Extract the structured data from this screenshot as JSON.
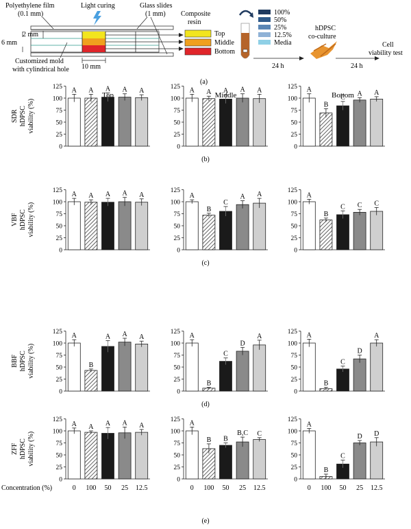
{
  "schematic": {
    "labels": {
      "film": "Polyethylene film",
      "film_dim": "(0.1 mm)",
      "curing": "Light curing",
      "glass": "Glass slides",
      "glass_dim": "(1 mm)",
      "resin": "Composite",
      "resin2": "resin",
      "top": "Top",
      "middle": "Middle",
      "bottom": "Bottom",
      "dim_2mm": "2 mm",
      "dim_6mm": "6 mm",
      "dim_10mm": "10 mm",
      "mold": "Customized mold",
      "mold2": "with cylindrical hole",
      "time1": "24 h",
      "time2": "24 h",
      "coculture": "hDPSC",
      "coculture2": "co-culture",
      "test": "Cell",
      "test2": "viability test",
      "caption": "(a)"
    },
    "dilutions": [
      {
        "label": "100%",
        "color": "#1f3a5f"
      },
      {
        "label": "50%",
        "color": "#2f5a8a"
      },
      {
        "label": "25%",
        "color": "#5a86b5"
      },
      {
        "label": "12.5%",
        "color": "#8fb2d6"
      },
      {
        "label": "Media",
        "color": "#8fd0e6"
      }
    ],
    "colors": {
      "top": "#f2e51f",
      "middle": "#f0a01e",
      "bottom": "#e0252a",
      "vial": "#b5642a",
      "cells": "#e8942f"
    }
  },
  "chart_data": {
    "type": "bar",
    "column_titles": [
      "Top",
      "Middle",
      "Bottom"
    ],
    "categories": [
      "0",
      "100",
      "50",
      "25",
      "12.5"
    ],
    "xlabel": "Concentration (%)",
    "ylim": [
      0,
      125
    ],
    "yticks": [
      "0",
      "25",
      "50",
      "75",
      "100",
      "125"
    ],
    "bar_styles": [
      "white",
      "hatched",
      "black",
      "gray",
      "lightgray"
    ],
    "bar_colors": {
      "white": "#ffffff",
      "black": "#1a1a1a",
      "gray": "#8a8a8a",
      "lightgray": "#cfcfcf"
    },
    "rows": [
      {
        "material": "SDR",
        "ylabel": "hDPSC",
        "ylabel2": "viability (%)",
        "caption": "(b)",
        "panels": [
          {
            "values": [
              100,
              100,
              102,
              102,
              101
            ],
            "errors": [
              8,
              8,
              9,
              7,
              6
            ],
            "letters": [
              "A",
              "A",
              "A",
              "A",
              "A"
            ]
          },
          {
            "values": [
              100,
              99,
              98,
              100,
              99
            ],
            "errors": [
              8,
              5,
              9,
              9,
              9
            ],
            "letters": [
              "A",
              "A",
              "A",
              "A",
              "A"
            ]
          },
          {
            "values": [
              100,
              69,
              84,
              96,
              98
            ],
            "errors": [
              9,
              9,
              9,
              5,
              5
            ],
            "letters": [
              "A",
              "B",
              "C",
              "A",
              "A"
            ]
          }
        ]
      },
      {
        "material": "VBF",
        "ylabel": "hDPSC",
        "ylabel2": "viability (%)",
        "caption": "(c)",
        "panels": [
          {
            "values": [
              100,
              99,
              99,
              100,
              99
            ],
            "errors": [
              7,
              5,
              8,
              9,
              7
            ],
            "letters": [
              "A",
              "A",
              "A",
              "A",
              "A"
            ]
          },
          {
            "values": [
              100,
              72,
              80,
              94,
              97
            ],
            "errors": [
              4,
              4,
              10,
              8,
              10
            ],
            "letters": [
              "A",
              "B",
              "C",
              "A",
              "A"
            ]
          },
          {
            "values": [
              100,
              62,
              73,
              78,
              80
            ],
            "errors": [
              5,
              4,
              8,
              6,
              8
            ],
            "letters": [
              "A",
              "B",
              "C",
              "C",
              "C"
            ]
          }
        ]
      },
      {
        "material": "BBF",
        "ylabel": "hDPSC",
        "ylabel2": "viability (%)",
        "caption": "(d)",
        "panels": [
          {
            "values": [
              100,
              43,
              93,
              102,
              98
            ],
            "errors": [
              7,
              3,
              12,
              8,
              6
            ],
            "letters": [
              "A",
              "B",
              "A",
              "A",
              "A"
            ]
          },
          {
            "values": [
              100,
              6,
              62,
              83,
              96
            ],
            "errors": [
              7,
              2,
              7,
              8,
              10
            ],
            "letters": [
              "A",
              "B",
              "C",
              "D",
              "A"
            ]
          },
          {
            "values": [
              100,
              5,
              46,
              67,
              100
            ],
            "errors": [
              8,
              3,
              6,
              8,
              7
            ],
            "letters": [
              "A",
              "B",
              "C",
              "D",
              "A"
            ]
          }
        ]
      },
      {
        "material": "ZFF",
        "ylabel": "hDPSC",
        "ylabel2": "viability (%)",
        "caption": "(e)",
        "panels": [
          {
            "values": [
              100,
              97,
              95,
              96,
              97
            ],
            "errors": [
              6,
              3,
              12,
              12,
              6
            ],
            "letters": [
              "A",
              "A",
              "A",
              "A",
              "A"
            ]
          },
          {
            "values": [
              100,
              63,
              70,
              77,
              82
            ],
            "errors": [
              8,
              10,
              5,
              10,
              4
            ],
            "letters": [
              "A",
              "B",
              "B",
              "B,C",
              "C"
            ]
          },
          {
            "values": [
              100,
              5,
              31,
              75,
              77
            ],
            "errors": [
              5,
              5,
              8,
              5,
              9
            ],
            "letters": [
              "A",
              "B",
              "C",
              "D",
              "D"
            ]
          }
        ]
      }
    ]
  }
}
